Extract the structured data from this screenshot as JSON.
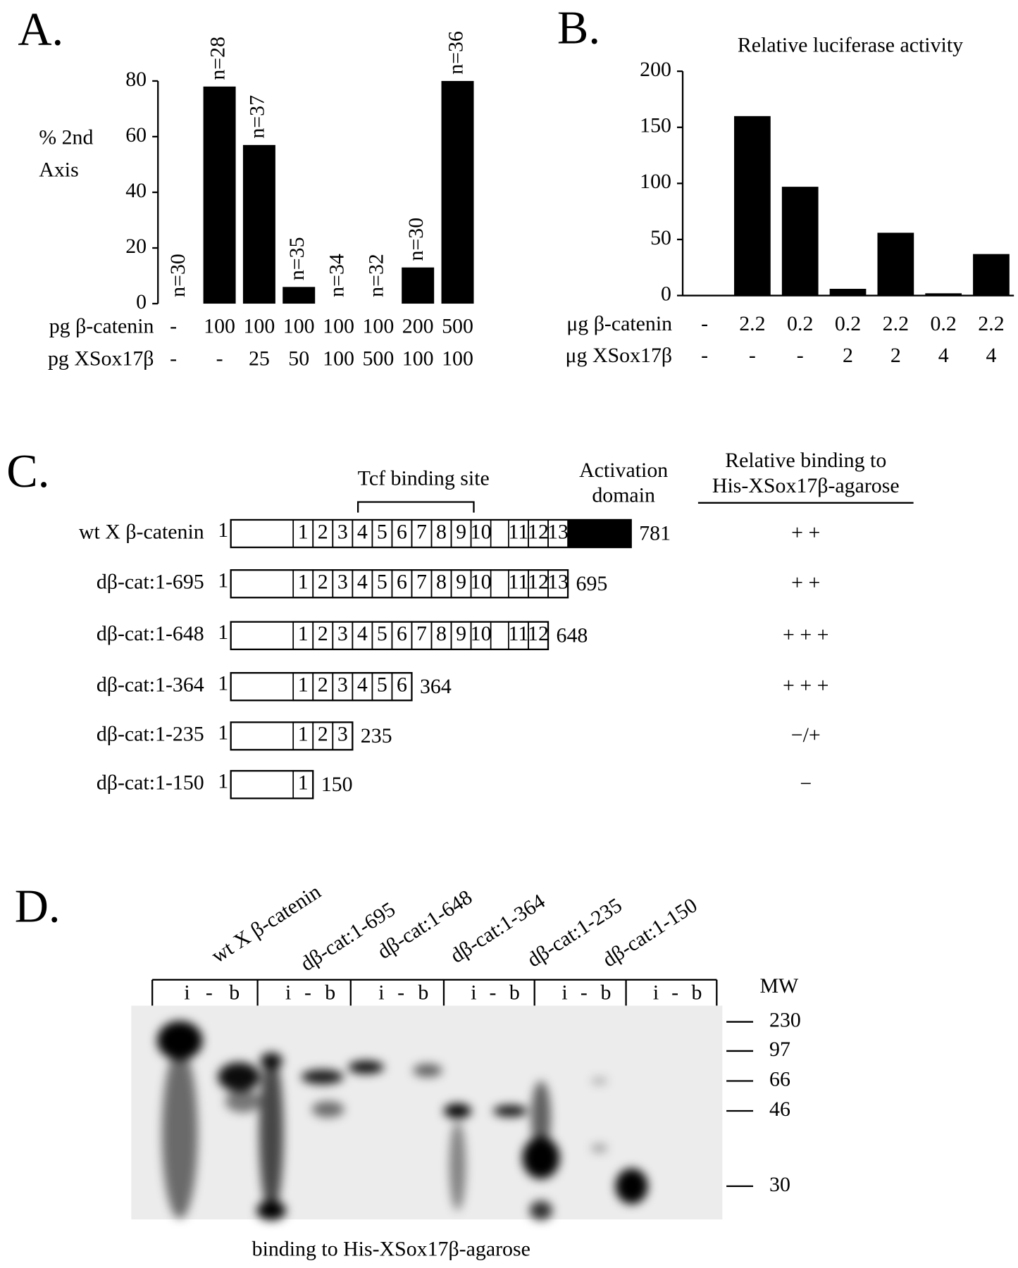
{
  "chart_data": [
    {
      "type": "bar",
      "panel": "A.",
      "ylabel": [
        "% 2nd",
        "Axis"
      ],
      "color": "#000000",
      "values": [
        0,
        78,
        57,
        6,
        0,
        0,
        13,
        80
      ],
      "annotations": [
        "n=30",
        "n=28",
        "n=37",
        "n=35",
        "n=34",
        "n=32",
        "n=30",
        "n=36"
      ],
      "ylim": [
        0,
        80
      ],
      "yticks": [
        0,
        20,
        40,
        60,
        80
      ],
      "rows": [
        {
          "name": "pg β-catenin",
          "values": [
            "-",
            "100",
            "100",
            "100",
            "100",
            "100",
            "200",
            "500"
          ]
        },
        {
          "name": "pg XSox17β",
          "values": [
            "-",
            "-",
            "25",
            "50",
            "100",
            "500",
            "100",
            "100"
          ]
        }
      ]
    },
    {
      "type": "bar",
      "panel": "B.",
      "title": "Relative luciferase activity",
      "color": "#000000",
      "values": [
        0,
        160,
        97,
        6,
        56,
        2,
        37
      ],
      "ylim": [
        0,
        200
      ],
      "yticks": [
        0,
        50,
        100,
        150,
        200
      ],
      "rows": [
        {
          "name": "μg β-catenin",
          "values": [
            "-",
            "2.2",
            "0.2",
            "0.2",
            "2.2",
            "0.2",
            "2.2"
          ]
        },
        {
          "name": "μg XSox17β",
          "values": [
            "-",
            "-",
            "-",
            "2",
            "2",
            "4",
            "4"
          ]
        }
      ]
    }
  ],
  "diagram": {
    "panel": "C.",
    "tcf_label": "Tcf binding site",
    "activation_label": [
      "Activation",
      "domain"
    ],
    "binding_header": [
      "Relative binding to",
      "His-XSox17β-agarose"
    ],
    "constructs": [
      {
        "name": "wt X β-catenin",
        "start": 1,
        "end": 781,
        "repeats": [
          1,
          2,
          3,
          4,
          5,
          6,
          7,
          8,
          9,
          10,
          11,
          12,
          13
        ],
        "activation": true,
        "binding": "+ +"
      },
      {
        "name": "dβ-cat:1-695",
        "start": 1,
        "end": 695,
        "repeats": [
          1,
          2,
          3,
          4,
          5,
          6,
          7,
          8,
          9,
          10,
          11,
          12,
          13
        ],
        "activation": false,
        "binding": "+ +"
      },
      {
        "name": "dβ-cat:1-648",
        "start": 1,
        "end": 648,
        "repeats": [
          1,
          2,
          3,
          4,
          5,
          6,
          7,
          8,
          9,
          10,
          11,
          12
        ],
        "activation": false,
        "binding": "+ + +"
      },
      {
        "name": "dβ-cat:1-364",
        "start": 1,
        "end": 364,
        "repeats": [
          1,
          2,
          3,
          4,
          5,
          6
        ],
        "activation": false,
        "binding": "+ + +"
      },
      {
        "name": "dβ-cat:1-235",
        "start": 1,
        "end": 235,
        "repeats": [
          1,
          2,
          3
        ],
        "activation": false,
        "binding": "−/+"
      },
      {
        "name": "dβ-cat:1-150",
        "start": 1,
        "end": 150,
        "repeats": [
          1
        ],
        "activation": false,
        "binding": "−"
      }
    ]
  },
  "gel": {
    "panel": "D.",
    "lanes": [
      "wt X β-catenin",
      "dβ-cat:1-695",
      "dβ-cat:1-648",
      "dβ-cat:1-364",
      "dβ-cat:1-235",
      "dβ-cat:1-150"
    ],
    "lane_marks": [
      "i",
      "-",
      "b"
    ],
    "mw_title": "MW",
    "mw": [
      230,
      97,
      66,
      46,
      30
    ],
    "caption": "binding to His-XSox17β-agarose"
  }
}
